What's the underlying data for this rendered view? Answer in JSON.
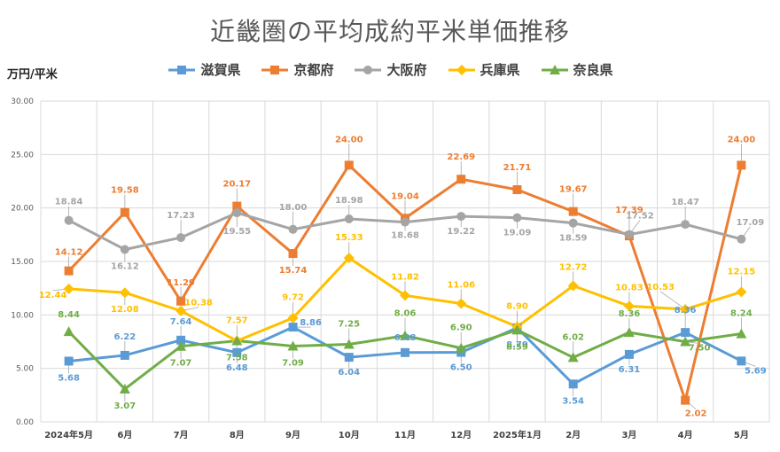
{
  "chart_data": {
    "type": "line",
    "title": "近畿圏の平均成約平米単価推移",
    "ylabel": "万円/平米",
    "xlabel": "",
    "ylim": [
      0,
      30
    ],
    "yticks": [
      "0.00",
      "5.00",
      "10.00",
      "15.00",
      "20.00",
      "25.00",
      "30.00"
    ],
    "categories": [
      "2024年5月",
      "6月",
      "7月",
      "8月",
      "9月",
      "10月",
      "11月",
      "12月",
      "2025年1月",
      "2月",
      "3月",
      "4月",
      "5月"
    ],
    "grid": true,
    "legend_position": "top",
    "series": [
      {
        "name": "滋賀県",
        "color": "#5B9BD5",
        "marker": "square",
        "values": [
          5.68,
          6.22,
          7.64,
          6.48,
          8.86,
          6.04,
          6.48,
          6.5,
          8.79,
          3.54,
          6.31,
          8.36,
          5.69
        ],
        "labels": [
          "5.68",
          "6.22",
          "7.64",
          "6.48",
          "8.86",
          "6.04",
          "6.48",
          "6.50",
          "8.79",
          "3.54",
          "6.31",
          "8.36",
          "5.69"
        ]
      },
      {
        "name": "京都府",
        "color": "#ED7D31",
        "marker": "square",
        "values": [
          14.12,
          19.58,
          11.29,
          20.17,
          15.74,
          24.0,
          19.04,
          22.69,
          21.71,
          19.67,
          17.39,
          2.02,
          24.0
        ],
        "labels": [
          "14.12",
          "19.58",
          "11.29",
          "20.17",
          "15.74",
          "24.00",
          "19.04",
          "22.69",
          "21.71",
          "19.67",
          "17.39",
          "2.02",
          "24.00"
        ]
      },
      {
        "name": "大阪府",
        "color": "#A5A5A5",
        "marker": "circle",
        "values": [
          18.84,
          16.12,
          17.23,
          19.55,
          18.0,
          18.98,
          18.68,
          19.22,
          19.09,
          18.59,
          17.52,
          18.47,
          17.09
        ],
        "labels": [
          "18.84",
          "16.12",
          "17.23",
          "19.55",
          "18.00",
          "18.98",
          "18.68",
          "19.22",
          "19.09",
          "18.59",
          "17.52",
          "18.47",
          "17.09"
        ]
      },
      {
        "name": "兵庫県",
        "color": "#FFC000",
        "marker": "diamond",
        "values": [
          12.44,
          12.08,
          10.38,
          7.57,
          9.72,
          15.33,
          11.82,
          11.06,
          8.9,
          12.72,
          10.83,
          10.53,
          12.15
        ],
        "labels": [
          "12.44",
          "12.08",
          "10.38",
          "7.57",
          "9.72",
          "15.33",
          "11.82",
          "11.06",
          "8.90",
          "12.72",
          "10.83",
          "10.53",
          "12.15"
        ]
      },
      {
        "name": "奈良県",
        "color": "#70AD47",
        "marker": "triangle",
        "values": [
          8.44,
          3.07,
          7.07,
          7.58,
          7.09,
          7.25,
          8.06,
          6.9,
          8.59,
          6.02,
          8.36,
          7.5,
          8.24
        ],
        "labels": [
          "8.44",
          "3.07",
          "7.07",
          "7.58",
          "7.09",
          "7.25",
          "8.06",
          "6.90",
          "8.59",
          "6.02",
          "8.36",
          "7.50",
          "8.24"
        ]
      }
    ]
  }
}
